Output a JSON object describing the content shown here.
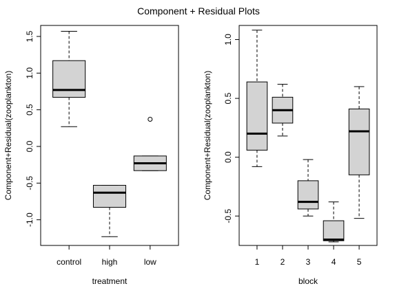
{
  "page": {
    "title": "Component + Residual Plots"
  },
  "chart_data": [
    {
      "type": "box",
      "xlabel": "treatment",
      "ylabel": "Component+Residual(zooplankton)",
      "ylim": [
        -1.35,
        1.65
      ],
      "yticks": [
        -1.0,
        -0.5,
        0.0,
        0.5,
        1.0,
        1.5
      ],
      "ytick_labels": [
        "-1.0",
        "-0.5",
        "0.0",
        "0.5",
        "1.0",
        "1.5"
      ],
      "categories": [
        "control",
        "high",
        "low"
      ],
      "boxes": [
        {
          "name": "control",
          "whisker_low": 0.27,
          "q1": 0.67,
          "median": 0.77,
          "q3": 1.17,
          "whisker_high": 1.57,
          "outliers": []
        },
        {
          "name": "high",
          "whisker_low": -1.23,
          "q1": -0.83,
          "median": -0.63,
          "q3": -0.53,
          "whisker_high": -0.53,
          "outliers": []
        },
        {
          "name": "low",
          "whisker_low": -0.33,
          "q1": -0.33,
          "median": -0.23,
          "q3": -0.13,
          "whisker_high": -0.13,
          "outliers": [
            0.37
          ]
        }
      ],
      "box_fill": "#d3d3d3",
      "grid": false
    },
    {
      "type": "box",
      "xlabel": "block",
      "ylabel": "Component+Residual(zooplankton)",
      "ylim": [
        -0.75,
        1.12
      ],
      "yticks": [
        -0.5,
        0.0,
        0.5,
        1.0
      ],
      "ytick_labels": [
        "-0.5",
        "0.0",
        "0.5",
        "1.0"
      ],
      "categories": [
        "1",
        "2",
        "3",
        "4",
        "5"
      ],
      "boxes": [
        {
          "name": "1",
          "whisker_low": -0.08,
          "q1": 0.06,
          "median": 0.2,
          "q3": 0.64,
          "whisker_high": 1.08,
          "outliers": []
        },
        {
          "name": "2",
          "whisker_low": 0.18,
          "q1": 0.29,
          "median": 0.4,
          "q3": 0.51,
          "whisker_high": 0.62,
          "outliers": []
        },
        {
          "name": "3",
          "whisker_low": -0.5,
          "q1": -0.44,
          "median": -0.38,
          "q3": -0.2,
          "whisker_high": -0.02,
          "outliers": []
        },
        {
          "name": "4",
          "whisker_low": -0.72,
          "q1": -0.71,
          "median": -0.7,
          "q3": -0.54,
          "whisker_high": -0.38,
          "outliers": []
        },
        {
          "name": "5",
          "whisker_low": -0.52,
          "q1": -0.15,
          "median": 0.22,
          "q3": 0.41,
          "whisker_high": 0.6,
          "outliers": []
        }
      ],
      "box_fill": "#d3d3d3",
      "grid": false
    }
  ]
}
